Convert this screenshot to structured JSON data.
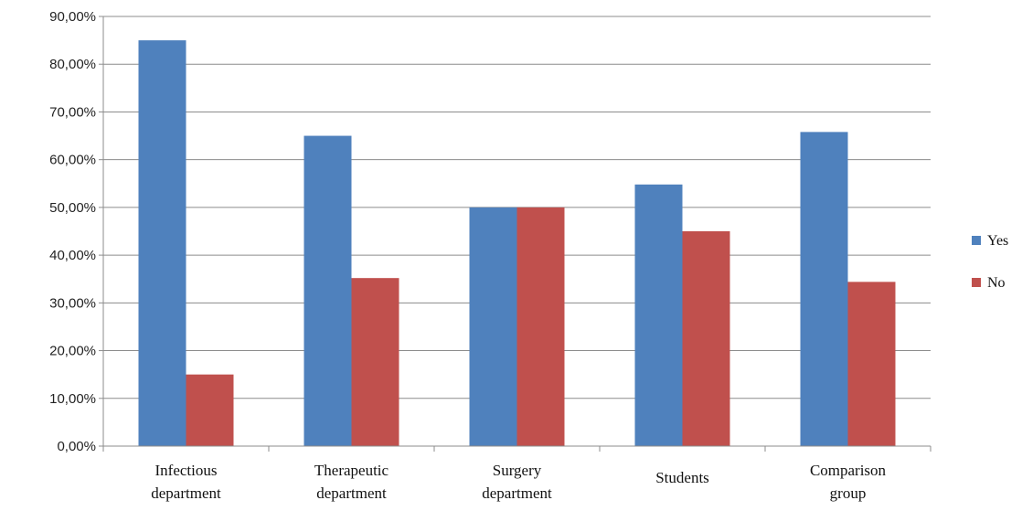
{
  "chart_data": {
    "type": "bar",
    "categories": [
      [
        "Infectious",
        "department"
      ],
      [
        "Therapeutic",
        "department"
      ],
      [
        "Surgery",
        "department"
      ],
      [
        "Students"
      ],
      [
        "Comparison",
        "group"
      ]
    ],
    "series": [
      {
        "name": "Yes",
        "color": "#4f81bd",
        "values": [
          85.0,
          65.0,
          50.0,
          54.8,
          65.8
        ]
      },
      {
        "name": "No",
        "color": "#c0504d",
        "values": [
          15.0,
          35.2,
          50.0,
          45.0,
          34.4
        ]
      }
    ],
    "ylim": [
      0,
      90
    ],
    "yticks": [
      "0,00%",
      "10,00%",
      "20,00%",
      "30,00%",
      "40,00%",
      "50,00%",
      "60,00%",
      "70,00%",
      "80,00%",
      "90,00%"
    ],
    "grid": true,
    "legend_position": "right"
  }
}
